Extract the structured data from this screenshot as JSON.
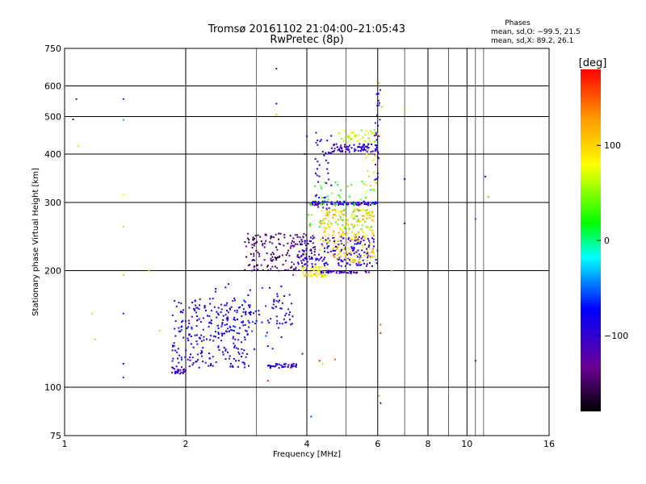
{
  "chart_data": {
    "type": "scatter",
    "title": "Tromsø 20161102 21:04:00–21:05:43",
    "subtitle": "RwPretec (8p)",
    "xlabel": "Frequency [MHz]",
    "ylabel": "Stationary phase Virtual Height [km]",
    "x_scale": "log",
    "y_scale": "log",
    "xlim": [
      1,
      16
    ],
    "ylim": [
      75,
      750
    ],
    "x_ticks": [
      {
        "value": 1,
        "label": "1"
      },
      {
        "value": 2,
        "label": "2"
      },
      {
        "value": 4,
        "label": "4"
      },
      {
        "value": 6,
        "label": "6"
      },
      {
        "value": 8,
        "label": "8"
      },
      {
        "value": 10,
        "label": "10"
      },
      {
        "value": 16,
        "label": "16"
      }
    ],
    "y_ticks": [
      {
        "value": 75,
        "label": "75"
      },
      {
        "value": 100,
        "label": "100"
      },
      {
        "value": 200,
        "label": "200"
      },
      {
        "value": 300,
        "label": "300"
      },
      {
        "value": 400,
        "label": "400"
      },
      {
        "value": 500,
        "label": "500"
      },
      {
        "value": 600,
        "label": "600"
      },
      {
        "value": 750,
        "label": "750"
      }
    ],
    "x_grid_major": [
      1,
      2,
      4,
      6,
      8,
      10,
      16
    ],
    "x_grid_minor": [
      3,
      5,
      7,
      9,
      10.5,
      11
    ],
    "y_grid": [
      75,
      100,
      200,
      300,
      400,
      500,
      600,
      750
    ],
    "grid": true,
    "stats": {
      "heading": "Phases",
      "line1": "mean, sd,O: −99.5, 21.5",
      "line2": "mean, sd,X:  89.2, 26.1"
    },
    "colorbar": {
      "unit": "[deg]",
      "range": [
        -180,
        180
      ],
      "tick_labels": [
        {
          "value": 100,
          "label": "100"
        },
        {
          "value": 0,
          "label": "0"
        },
        {
          "value": -100,
          "label": "−100"
        }
      ]
    },
    "clusters": [
      {
        "f": [
          1.85,
          2.0
        ],
        "h": [
          108,
          112
        ],
        "phase": -110,
        "n": 25
      },
      {
        "f": [
          1.85,
          2.9
        ],
        "h": [
          112,
          170
        ],
        "phase": -95,
        "n": 260
      },
      {
        "f": [
          2.3,
          3.5
        ],
        "h": [
          125,
          185
        ],
        "phase": -85,
        "n": 60
      },
      {
        "f": [
          3.2,
          3.8
        ],
        "h": [
          112,
          115
        ],
        "phase": -100,
        "n": 45
      },
      {
        "f": [
          3.3,
          3.7
        ],
        "h": [
          145,
          175
        ],
        "phase": -95,
        "n": 30
      },
      {
        "f": [
          2.8,
          4.2
        ],
        "h": [
          200,
          250
        ],
        "phase": -145,
        "n": 170
      },
      {
        "f": [
          3.8,
          6.0
        ],
        "h": [
          205,
          245
        ],
        "phase": -100,
        "n": 180
      },
      {
        "f": [
          4.3,
          5.9
        ],
        "h": [
          210,
          290
        ],
        "phase": 105,
        "n": 210
      },
      {
        "f": [
          3.9,
          4.5
        ],
        "h": [
          192,
          205
        ],
        "phase": 90,
        "n": 60
      },
      {
        "f": [
          4.3,
          5.8
        ],
        "h": [
          197,
          200
        ],
        "phase": -110,
        "n": 50
      },
      {
        "f": [
          4.0,
          6.0
        ],
        "h": [
          295,
          302
        ],
        "phase": -100,
        "n": 90
      },
      {
        "f": [
          4.0,
          5.9
        ],
        "h": [
          255,
          340
        ],
        "phase": 30,
        "n": 70
      },
      {
        "f": [
          4.6,
          6.0
        ],
        "h": [
          405,
          425
        ],
        "phase": -105,
        "n": 80
      },
      {
        "f": [
          4.8,
          6.0
        ],
        "h": [
          430,
          465
        ],
        "phase": 70,
        "n": 45
      },
      {
        "f": [
          4.2,
          4.6
        ],
        "h": [
          280,
          460
        ],
        "phase": -100,
        "n": 40
      },
      {
        "f": [
          5.9,
          6.1
        ],
        "h": [
          340,
          590
        ],
        "phase": -90,
        "n": 30
      },
      {
        "f": [
          5.6,
          6.0
        ],
        "h": [
          320,
          420
        ],
        "phase": 90,
        "n": 15
      }
    ],
    "points": [
      {
        "f": 1.07,
        "h": 555,
        "phase": -120
      },
      {
        "f": 1.05,
        "h": 492,
        "phase": -105
      },
      {
        "f": 1.08,
        "h": 420,
        "phase": 100
      },
      {
        "f": 1.4,
        "h": 555,
        "phase": -70
      },
      {
        "f": 1.4,
        "h": 490,
        "phase": -40
      },
      {
        "f": 1.4,
        "h": 315,
        "phase": 80
      },
      {
        "f": 1.4,
        "h": 260,
        "phase": 110
      },
      {
        "f": 1.4,
        "h": 195,
        "phase": 110
      },
      {
        "f": 1.4,
        "h": 155,
        "phase": -70
      },
      {
        "f": 1.4,
        "h": 115,
        "phase": -80
      },
      {
        "f": 1.4,
        "h": 106,
        "phase": -70
      },
      {
        "f": 1.17,
        "h": 155,
        "phase": 60
      },
      {
        "f": 1.19,
        "h": 133,
        "phase": 110
      },
      {
        "f": 1.62,
        "h": 200,
        "phase": 110
      },
      {
        "f": 1.72,
        "h": 140,
        "phase": 110
      },
      {
        "f": 3.36,
        "h": 665,
        "phase": -140
      },
      {
        "f": 3.36,
        "h": 540,
        "phase": -100
      },
      {
        "f": 3.36,
        "h": 505,
        "phase": 110
      },
      {
        "f": 3.2,
        "h": 104,
        "phase": 170
      },
      {
        "f": 3.7,
        "h": 195,
        "phase": 175
      },
      {
        "f": 3.9,
        "h": 122,
        "phase": -140
      },
      {
        "f": 4.3,
        "h": 117,
        "phase": 175
      },
      {
        "f": 4.38,
        "h": 115,
        "phase": 100
      },
      {
        "f": 4.7,
        "h": 118,
        "phase": 150
      },
      {
        "f": 4.1,
        "h": 84,
        "phase": -60
      },
      {
        "f": 6.0,
        "h": 620,
        "phase": 150
      },
      {
        "f": 6.05,
        "h": 610,
        "phase": 110
      },
      {
        "f": 6.15,
        "h": 530,
        "phase": 110
      },
      {
        "f": 6.1,
        "h": 145,
        "phase": 150
      },
      {
        "f": 6.1,
        "h": 138,
        "phase": 170
      },
      {
        "f": 6.05,
        "h": 95,
        "phase": 120
      },
      {
        "f": 6.1,
        "h": 91,
        "phase": -120
      },
      {
        "f": 6.5,
        "h": 200,
        "phase": 40
      },
      {
        "f": 7.0,
        "h": 520,
        "phase": 120
      },
      {
        "f": 7.0,
        "h": 345,
        "phase": -80
      },
      {
        "f": 7.0,
        "h": 265,
        "phase": -120
      },
      {
        "f": 10.5,
        "h": 272,
        "phase": -60
      },
      {
        "f": 10.5,
        "h": 117,
        "phase": -140
      },
      {
        "f": 11.1,
        "h": 350,
        "phase": -100
      },
      {
        "f": 11.3,
        "h": 310,
        "phase": 130
      },
      {
        "f": 3.95,
        "h": 400,
        "phase": -130
      },
      {
        "f": 4.0,
        "h": 445,
        "phase": -110
      }
    ]
  }
}
